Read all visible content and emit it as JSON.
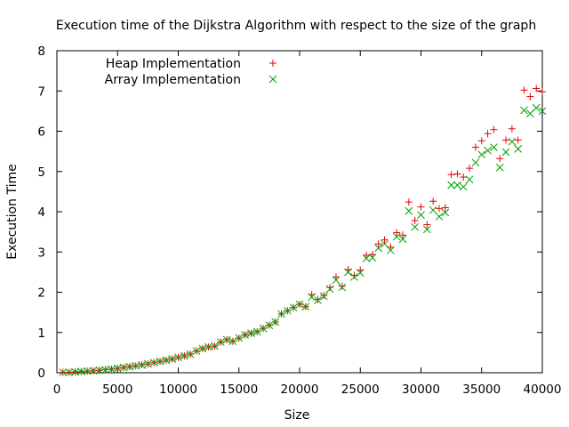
{
  "chart_data": {
    "type": "scatter",
    "title": "Execution time of the Dijkstra Algorithm with respect to the size of the graph",
    "xlabel": "Size",
    "ylabel": "Execution Time",
    "xlim": [
      0,
      40000
    ],
    "ylim": [
      0,
      8
    ],
    "xticks": [
      0,
      5000,
      10000,
      15000,
      20000,
      25000,
      30000,
      35000,
      40000
    ],
    "yticks": [
      0,
      1,
      2,
      3,
      4,
      5,
      6,
      7,
      8
    ],
    "grid": false,
    "legend_position": "top-left",
    "series": [
      {
        "name": "Heap Implementation",
        "marker": "plus",
        "color": "#e8000b",
        "x": [
          500,
          1000,
          1500,
          2000,
          2500,
          3000,
          3500,
          4000,
          4500,
          5000,
          5500,
          6000,
          6500,
          7000,
          7500,
          8000,
          8500,
          9000,
          9500,
          10000,
          10500,
          11000,
          11500,
          12000,
          12500,
          13000,
          13500,
          14000,
          14500,
          15000,
          15500,
          16000,
          16500,
          17000,
          17500,
          18000,
          18500,
          19000,
          19500,
          20000,
          20500,
          21000,
          21500,
          22000,
          22500,
          23000,
          23500,
          24000,
          24500,
          25000,
          25500,
          26000,
          26500,
          27000,
          27500,
          28000,
          28500,
          29000,
          29500,
          30000,
          30500,
          31000,
          31500,
          32000,
          32500,
          33000,
          33500,
          34000,
          34500,
          35000,
          35500,
          36000,
          36500,
          37000,
          37500,
          38000,
          38500,
          39000,
          39500,
          40000
        ],
        "y": [
          0.01,
          0.01,
          0.02,
          0.03,
          0.04,
          0.05,
          0.06,
          0.08,
          0.09,
          0.11,
          0.13,
          0.15,
          0.17,
          0.2,
          0.22,
          0.25,
          0.28,
          0.31,
          0.34,
          0.38,
          0.42,
          0.46,
          0.54,
          0.6,
          0.64,
          0.66,
          0.76,
          0.82,
          0.78,
          0.86,
          0.94,
          0.98,
          1.02,
          1.1,
          1.18,
          1.26,
          1.46,
          1.54,
          1.62,
          1.7,
          1.64,
          1.94,
          1.82,
          1.92,
          2.12,
          2.38,
          2.15,
          2.56,
          2.42,
          2.55,
          2.92,
          2.94,
          3.2,
          3.3,
          3.12,
          3.48,
          3.42,
          4.24,
          3.78,
          4.12,
          3.68,
          4.26,
          4.08,
          4.1,
          4.92,
          4.94,
          4.86,
          5.08,
          5.6,
          5.76,
          5.94,
          6.04,
          5.32,
          5.78,
          6.06,
          5.78,
          7.02,
          6.86,
          7.06,
          6.98
        ]
      },
      {
        "name": "Array Implementation",
        "marker": "cross",
        "color": "#00a000",
        "x": [
          500,
          1000,
          1500,
          2000,
          2500,
          3000,
          3500,
          4000,
          4500,
          5000,
          5500,
          6000,
          6500,
          7000,
          7500,
          8000,
          8500,
          9000,
          9500,
          10000,
          10500,
          11000,
          11500,
          12000,
          12500,
          13000,
          13500,
          14000,
          14500,
          15000,
          15500,
          16000,
          16500,
          17000,
          17500,
          18000,
          18500,
          19000,
          19500,
          20000,
          20500,
          21000,
          21500,
          22000,
          22500,
          23000,
          23500,
          24000,
          24500,
          25000,
          25500,
          26000,
          26500,
          27000,
          27500,
          28000,
          28500,
          29000,
          29500,
          30000,
          30500,
          31000,
          31500,
          32000,
          32500,
          33000,
          33500,
          34000,
          34500,
          35000,
          35500,
          36000,
          36500,
          37000,
          37500,
          38000,
          38500,
          39000,
          39500,
          40000
        ],
        "y": [
          0.01,
          0.01,
          0.02,
          0.03,
          0.04,
          0.05,
          0.06,
          0.07,
          0.09,
          0.11,
          0.13,
          0.15,
          0.17,
          0.19,
          0.22,
          0.25,
          0.28,
          0.31,
          0.34,
          0.38,
          0.42,
          0.46,
          0.54,
          0.6,
          0.64,
          0.66,
          0.76,
          0.82,
          0.78,
          0.86,
          0.94,
          0.98,
          1.02,
          1.1,
          1.18,
          1.26,
          1.46,
          1.54,
          1.62,
          1.7,
          1.64,
          1.88,
          1.8,
          1.9,
          2.08,
          2.3,
          2.12,
          2.5,
          2.38,
          2.48,
          2.84,
          2.86,
          3.1,
          3.2,
          3.04,
          3.38,
          3.32,
          4.02,
          3.62,
          3.92,
          3.56,
          4.04,
          3.88,
          3.98,
          4.66,
          4.66,
          4.62,
          4.8,
          5.22,
          5.42,
          5.52,
          5.6,
          5.1,
          5.48,
          5.74,
          5.56,
          6.52,
          6.44,
          6.58,
          6.5
        ]
      }
    ]
  }
}
